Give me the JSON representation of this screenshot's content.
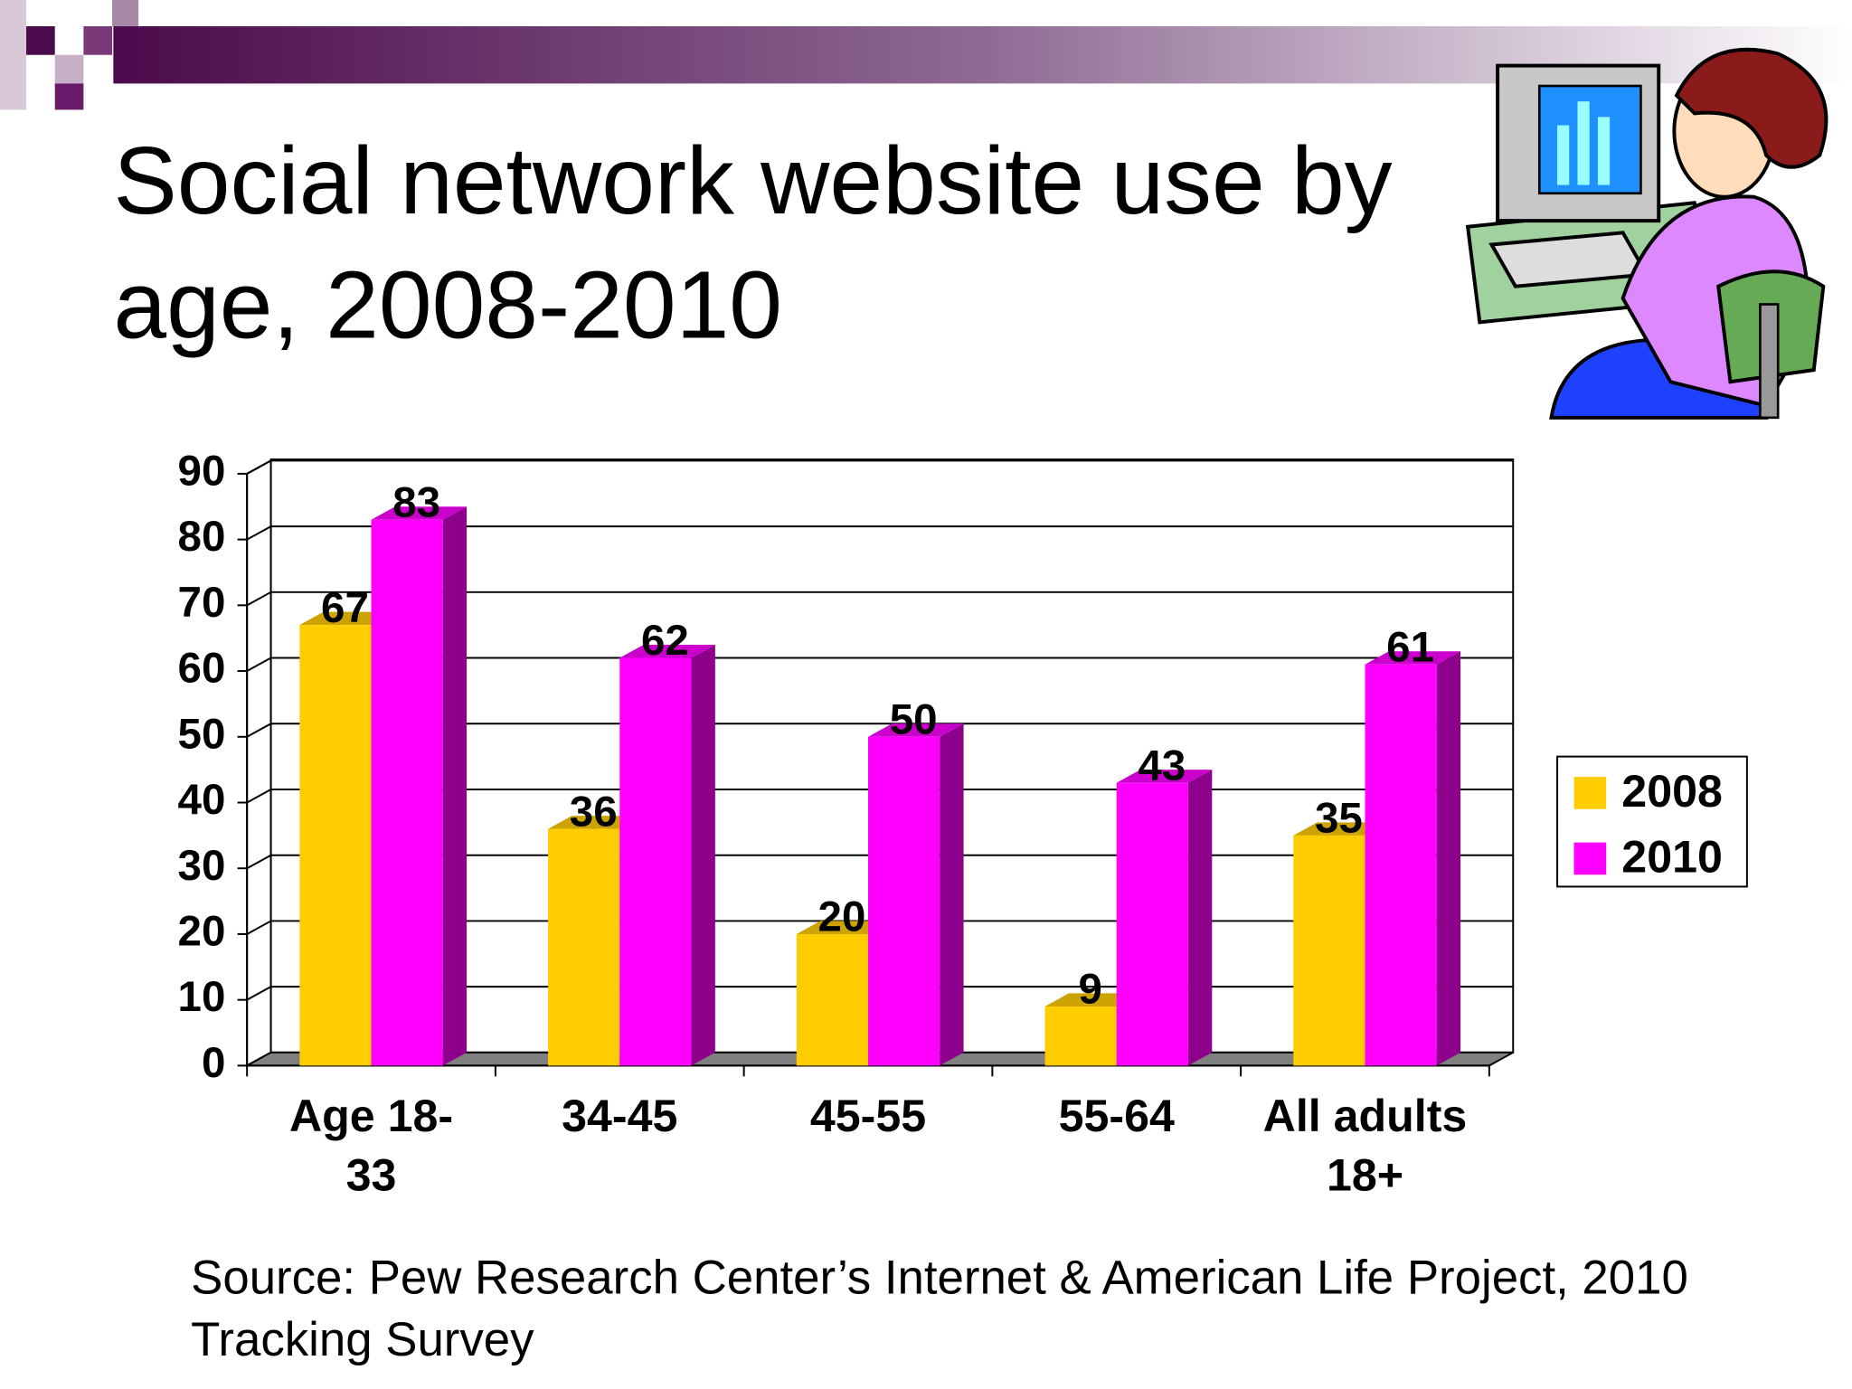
{
  "chart_data": {
    "type": "bar",
    "title": "Social network website use by age, 2008-2010",
    "categories": [
      "Age 18-33",
      "34-45",
      "45-55",
      "55-64",
      "All adults 18+"
    ],
    "series": [
      {
        "name": "2008",
        "color": "#ffcc00",
        "values": [
          67,
          36,
          20,
          9,
          35
        ]
      },
      {
        "name": "2010",
        "color": "#ff00ff",
        "values": [
          83,
          62,
          50,
          43,
          61
        ]
      }
    ],
    "ylim": [
      0,
      90
    ],
    "yticks": [
      0,
      10,
      20,
      30,
      40,
      50,
      60,
      70,
      80,
      90
    ],
    "grid": true,
    "legend": "right",
    "source": "Source: Pew Research Center’s Internet & American Life Project, 2010 Tracking Survey"
  }
}
